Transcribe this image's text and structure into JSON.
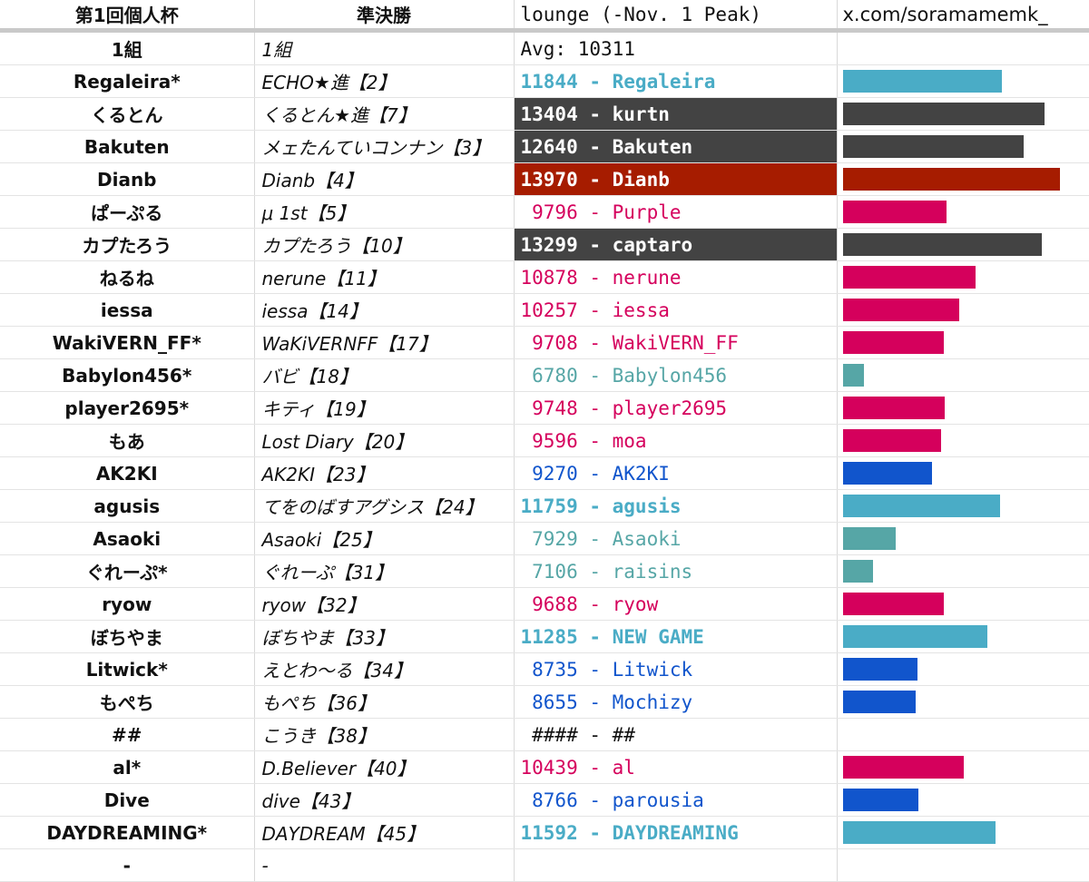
{
  "header": {
    "col1": "第1回個人杯",
    "col2": "準決勝",
    "col3": "lounge (-Nov. 1 Peak)",
    "col4": "x.com/soramamemk_"
  },
  "group_row": {
    "col1": "1組",
    "col2": "1組",
    "col3": "Avg: 10311",
    "col4": ""
  },
  "colors": {
    "teal_bold": "#4aacc6",
    "dark_bg": "#434343",
    "red_bg": "#a61c00",
    "magenta": "#d5005c",
    "light_teal": "#56a6a6",
    "blue": "#1155cc",
    "black": "#111111"
  },
  "bar_max_rating": 14000,
  "rows": [
    {
      "name": "Regaleira*",
      "semifinal": "ECHO★進【2】",
      "rating": "11844",
      "lounge_name": "Regaleira",
      "rating_value": 11844,
      "style": "teal_bold",
      "bar_color": "#4aacc6"
    },
    {
      "name": "くるとん",
      "semifinal": "くるとん★進【7】",
      "rating": "13404",
      "lounge_name": "kurtn",
      "rating_value": 13404,
      "style": "dark",
      "bar_color": "#434343"
    },
    {
      "name": "Bakuten",
      "semifinal": "メェたんていコンナン【3】",
      "rating": "12640",
      "lounge_name": "Bakuten",
      "rating_value": 12640,
      "style": "dark",
      "bar_color": "#434343"
    },
    {
      "name": "Dianb",
      "semifinal": "Dianb【4】",
      "rating": "13970",
      "lounge_name": "Dianb",
      "rating_value": 13970,
      "style": "red",
      "bar_color": "#a61c00"
    },
    {
      "name": "ぱーぷる",
      "semifinal": "μ 1st【5】",
      "rating": " 9796",
      "lounge_name": "Purple",
      "rating_value": 9796,
      "style": "magenta",
      "bar_color": "#d5005c"
    },
    {
      "name": "カプたろう",
      "semifinal": "カプたろう【10】",
      "rating": "13299",
      "lounge_name": "captaro",
      "rating_value": 13299,
      "style": "dark",
      "bar_color": "#434343"
    },
    {
      "name": "ねるね",
      "semifinal": "nerune【11】",
      "rating": "10878",
      "lounge_name": "nerune",
      "rating_value": 10878,
      "style": "magenta",
      "bar_color": "#d5005c"
    },
    {
      "name": "iessa",
      "semifinal": "iessa【14】",
      "rating": "10257",
      "lounge_name": "iessa",
      "rating_value": 10257,
      "style": "magenta",
      "bar_color": "#d5005c"
    },
    {
      "name": "WakiVERN_FF*",
      "semifinal": "WaKiVERNFF【17】",
      "rating": " 9708",
      "lounge_name": "WakiVERN_FF",
      "rating_value": 9708,
      "style": "magenta",
      "bar_color": "#d5005c"
    },
    {
      "name": "Babylon456*",
      "semifinal": "バビ【18】",
      "rating": " 6780",
      "lounge_name": "Babylon456",
      "rating_value": 6780,
      "style": "light_teal",
      "bar_color": "#56a6a6"
    },
    {
      "name": "player2695*",
      "semifinal": "キティ【19】",
      "rating": " 9748",
      "lounge_name": "player2695",
      "rating_value": 9748,
      "style": "magenta",
      "bar_color": "#d5005c"
    },
    {
      "name": "もあ",
      "semifinal": "Lost Diary【20】",
      "rating": " 9596",
      "lounge_name": "moa",
      "rating_value": 9596,
      "style": "magenta",
      "bar_color": "#d5005c"
    },
    {
      "name": "AK2KI",
      "semifinal": "AK2KI【23】",
      "rating": " 9270",
      "lounge_name": "AK2KI",
      "rating_value": 9270,
      "style": "blue",
      "bar_color": "#1155cc"
    },
    {
      "name": "agusis",
      "semifinal": "てをのばすアグシス【24】",
      "rating": "11759",
      "lounge_name": "agusis",
      "rating_value": 11759,
      "style": "teal_bold",
      "bar_color": "#4aacc6"
    },
    {
      "name": "Asaoki",
      "semifinal": "Asaoki【25】",
      "rating": " 7929",
      "lounge_name": "Asaoki",
      "rating_value": 7929,
      "style": "light_teal",
      "bar_color": "#56a6a6"
    },
    {
      "name": "ぐれーぷ*",
      "semifinal": "ぐれーぷ【31】",
      "rating": " 7106",
      "lounge_name": "raisins",
      "rating_value": 7106,
      "style": "light_teal",
      "bar_color": "#56a6a6"
    },
    {
      "name": "ryow",
      "semifinal": "ryow【32】",
      "rating": " 9688",
      "lounge_name": "ryow",
      "rating_value": 9688,
      "style": "magenta",
      "bar_color": "#d5005c"
    },
    {
      "name": "ぼちやま",
      "semifinal": "ぼちやま【33】",
      "rating": "11285",
      "lounge_name": "NEW GAME",
      "rating_value": 11285,
      "style": "teal_bold",
      "bar_color": "#4aacc6"
    },
    {
      "name": "Litwick*",
      "semifinal": "えとわ〜る【34】",
      "rating": " 8735",
      "lounge_name": "Litwick",
      "rating_value": 8735,
      "style": "blue",
      "bar_color": "#1155cc"
    },
    {
      "name": "もぺち",
      "semifinal": "もぺち【36】",
      "rating": " 8655",
      "lounge_name": "Mochizy",
      "rating_value": 8655,
      "style": "blue",
      "bar_color": "#1155cc"
    },
    {
      "name": "##",
      "semifinal": "こうき【38】",
      "rating": " ####",
      "lounge_name": "##",
      "rating_value": null,
      "style": "black",
      "bar_color": ""
    },
    {
      "name": "al*",
      "semifinal": "D.Believer【40】",
      "rating": "10439",
      "lounge_name": "al",
      "rating_value": 10439,
      "style": "magenta",
      "bar_color": "#d5005c"
    },
    {
      "name": "Dive",
      "semifinal": "dive【43】",
      "rating": " 8766",
      "lounge_name": "parousia",
      "rating_value": 8766,
      "style": "blue",
      "bar_color": "#1155cc"
    },
    {
      "name": "DAYDREAMING*",
      "semifinal": "DAYDREAM【45】",
      "rating": "11592",
      "lounge_name": "DAYDREAMING",
      "rating_value": 11592,
      "style": "teal_bold",
      "bar_color": "#4aacc6"
    }
  ],
  "last_row": {
    "col1": "-",
    "col2": "-"
  }
}
